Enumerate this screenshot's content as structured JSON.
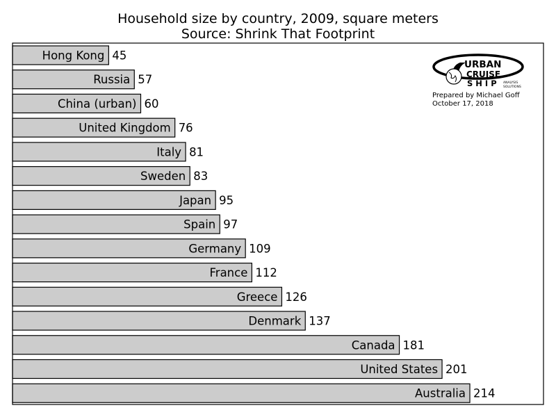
{
  "chart_data": {
    "type": "bar",
    "orientation": "horizontal",
    "title": "Household size by country, 2009, square meters",
    "subtitle": "Source: Shrink That Footprint",
    "categories": [
      "Hong Kong",
      "Russia",
      "China (urban)",
      "United Kingdom",
      "Italy",
      "Sweden",
      "Japan",
      "Spain",
      "Germany",
      "France",
      "Greece",
      "Denmark",
      "Canada",
      "United States",
      "Australia"
    ],
    "values": [
      45,
      57,
      60,
      76,
      81,
      83,
      95,
      97,
      109,
      112,
      126,
      137,
      181,
      201,
      214
    ],
    "xlim": [
      0,
      250
    ],
    "grid": false,
    "colors": {
      "bar_fill": "#cccccc",
      "bar_edge": "#000000"
    }
  },
  "logo": {
    "line1": "URBAN",
    "line2": "CRUISE",
    "line3": "S H I P",
    "tag1": "ANALYSIS",
    "tag2": "SOLUTIONS"
  },
  "credits": {
    "prepared_by": "Prepared by Michael Goff",
    "date": "October 17, 2018"
  }
}
